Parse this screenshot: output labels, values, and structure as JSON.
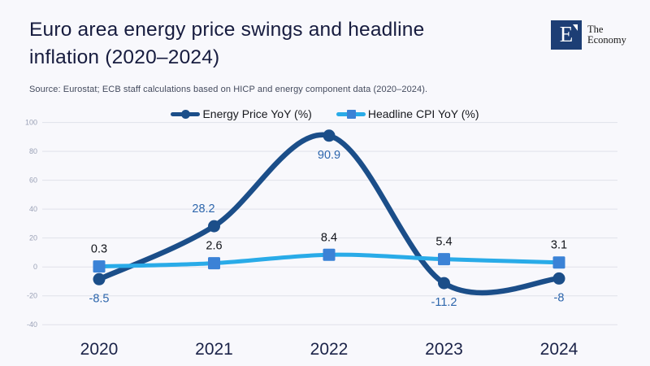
{
  "page": {
    "background": "#f8f8fc"
  },
  "header": {
    "title_lines": [
      "Euro area energy price swings and headline",
      "inflation (2020–2024)"
    ],
    "source": "Source: Eurostat; ECB staff calculations based on HICP and energy component data (2020–2024).",
    "logo": {
      "letter": "E",
      "name_line1": "The",
      "name_line2": "Economy",
      "box_color": "#1d3e75"
    }
  },
  "chart_data": {
    "type": "line",
    "title": "Euro area energy price swings and headline inflation (2020–2024)",
    "categories": [
      "2020",
      "2021",
      "2022",
      "2023",
      "2024"
    ],
    "series": [
      {
        "name": "Energy Price YoY (%)",
        "values": [
          -8.5,
          28.2,
          90.9,
          -11.2,
          -8
        ],
        "labels": [
          "-8.5",
          "28.2",
          "90.9",
          "-11.2",
          "-8"
        ],
        "color": "#1b4e89",
        "marker": "circle",
        "label_color": "#2d66ac",
        "label_pos": [
          "below",
          "above",
          "below",
          "below",
          "below"
        ],
        "label_dx": [
          0,
          -13,
          0,
          0,
          0
        ]
      },
      {
        "name": "Headline CPI YoY (%)",
        "values": [
          0.3,
          2.6,
          8.4,
          5.4,
          3.1
        ],
        "labels": [
          "0.3",
          "2.6",
          "8.4",
          "5.4",
          "3.1"
        ],
        "color": "#29abe8",
        "marker": "square",
        "marker_color": "#3b82d6",
        "label_color": "#101319",
        "label_pos": [
          "above",
          "above",
          "above",
          "above",
          "above"
        ],
        "label_dx": [
          0,
          0,
          0,
          0,
          0
        ]
      }
    ],
    "xlabel": "",
    "ylabel": "",
    "ylim": [
      -40,
      100
    ],
    "y_ticks": [
      100,
      80,
      60,
      40,
      20,
      0,
      -20,
      -40
    ],
    "grid": true,
    "legend_position": "top",
    "colors": {
      "gridline": "#e0e1ea",
      "y_tick_label": "#9aa1b6",
      "x_axis_label": "#1b2348"
    }
  }
}
